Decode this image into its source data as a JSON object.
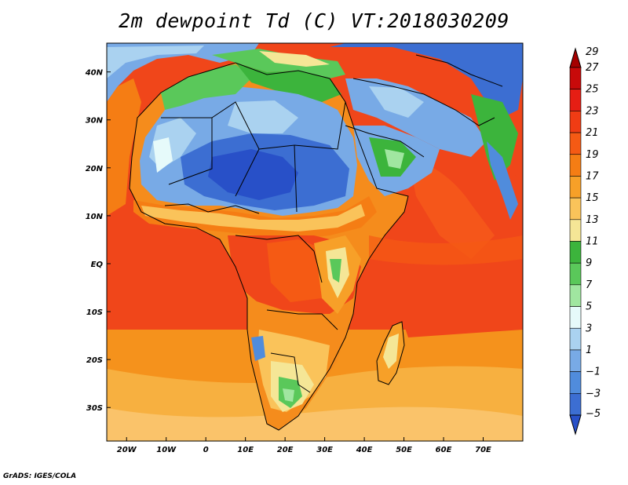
{
  "title": "2m dewpoint Td (C) VT:2018030209",
  "credit": "GrADS: IGES/COLA",
  "map": {
    "region": "Africa and Middle East",
    "lon_range": [
      -25,
      80
    ],
    "lat_range": [
      -37,
      46
    ],
    "lon_ticks": [
      {
        "lon": -20,
        "label": "20W"
      },
      {
        "lon": -10,
        "label": "10W"
      },
      {
        "lon": 0,
        "label": "0"
      },
      {
        "lon": 10,
        "label": "10E"
      },
      {
        "lon": 20,
        "label": "20E"
      },
      {
        "lon": 30,
        "label": "30E"
      },
      {
        "lon": 40,
        "label": "40E"
      },
      {
        "lon": 50,
        "label": "50E"
      },
      {
        "lon": 60,
        "label": "60E"
      },
      {
        "lon": 70,
        "label": "70E"
      }
    ],
    "lat_ticks": [
      {
        "lat": 40,
        "label": "40N"
      },
      {
        "lat": 30,
        "label": "30N"
      },
      {
        "lat": 20,
        "label": "20N"
      },
      {
        "lat": 10,
        "label": "10N"
      },
      {
        "lat": 0,
        "label": "EQ"
      },
      {
        "lat": -10,
        "label": "10S"
      },
      {
        "lat": -20,
        "label": "20S"
      },
      {
        "lat": -30,
        "label": "30S"
      }
    ]
  },
  "colorbar": {
    "labels": [
      "29",
      "27",
      "25",
      "23",
      "21",
      "19",
      "17",
      "15",
      "13",
      "11",
      "9",
      "7",
      "5",
      "3",
      "1",
      "−1",
      "−3",
      "−5"
    ],
    "colors": [
      "#a50000",
      "#c80a0a",
      "#e61e14",
      "#f03c14",
      "#f55a14",
      "#f57d14",
      "#f7a028",
      "#fac35a",
      "#f5e696",
      "#3cb43c",
      "#5ac85a",
      "#a0e6a0",
      "#e6fafa",
      "#aad2f0",
      "#78aae6",
      "#508cdc",
      "#3c6ed2",
      "#2850c8"
    ]
  }
}
